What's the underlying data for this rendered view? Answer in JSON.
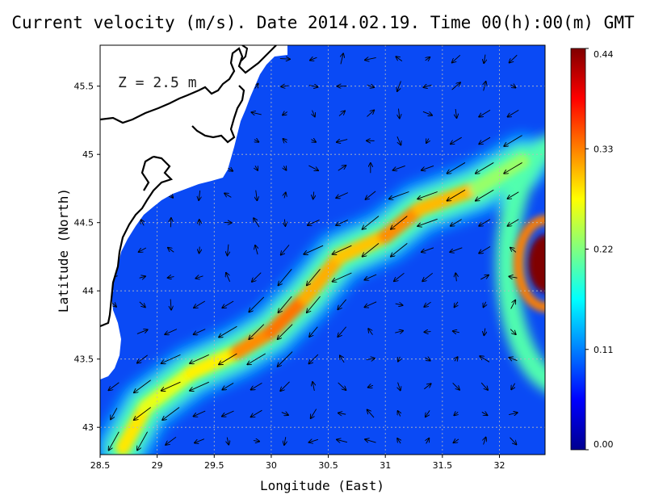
{
  "chart_data": {
    "type": "heatmap",
    "title": "Current velocity (m/s). Date 2014.02.19. Time 00(h):00(m) GMT",
    "annotation": "Z = 2.5 m",
    "xlabel": "Longitude (East)",
    "ylabel": "Latitude (North)",
    "xlim": [
      28.5,
      32.4
    ],
    "ylim": [
      42.8,
      45.8
    ],
    "xticks": [
      "28.5",
      "29",
      "29.5",
      "30",
      "30.5",
      "31",
      "31.5",
      "32"
    ],
    "yticks": [
      "43",
      "43.5",
      "44",
      "44.5",
      "45",
      "45.5"
    ],
    "grid": true,
    "colorbar": {
      "min": 0.0,
      "max": 0.44,
      "ticks": [
        "0.00",
        "0.11",
        "0.22",
        "0.33",
        "0.44"
      ],
      "colormap": [
        "#00008f",
        "#0000ff",
        "#0080ff",
        "#00ffff",
        "#80ff80",
        "#ffff00",
        "#ff8000",
        "#ff0000",
        "#800000"
      ]
    },
    "jet_axis": [
      {
        "lon": 28.7,
        "lat": 42.85,
        "speed": 0.3
      },
      {
        "lon": 28.9,
        "lat": 43.15,
        "speed": 0.27
      },
      {
        "lon": 29.3,
        "lat": 43.4,
        "speed": 0.26
      },
      {
        "lon": 29.7,
        "lat": 43.55,
        "speed": 0.3
      },
      {
        "lon": 30.0,
        "lat": 43.7,
        "speed": 0.35
      },
      {
        "lon": 30.3,
        "lat": 43.95,
        "speed": 0.32
      },
      {
        "lon": 30.6,
        "lat": 44.25,
        "speed": 0.3
      },
      {
        "lon": 31.0,
        "lat": 44.4,
        "speed": 0.3
      },
      {
        "lon": 31.3,
        "lat": 44.6,
        "speed": 0.35
      },
      {
        "lon": 31.8,
        "lat": 44.75,
        "speed": 0.26
      },
      {
        "lon": 32.2,
        "lat": 44.95,
        "speed": 0.2
      }
    ],
    "eddy_max": {
      "lon": 32.35,
      "lat": 44.2,
      "speed": 0.44
    },
    "colors": {
      "land": "#ffffff",
      "coast": "#000000",
      "grid": "#bbbbbb"
    }
  }
}
